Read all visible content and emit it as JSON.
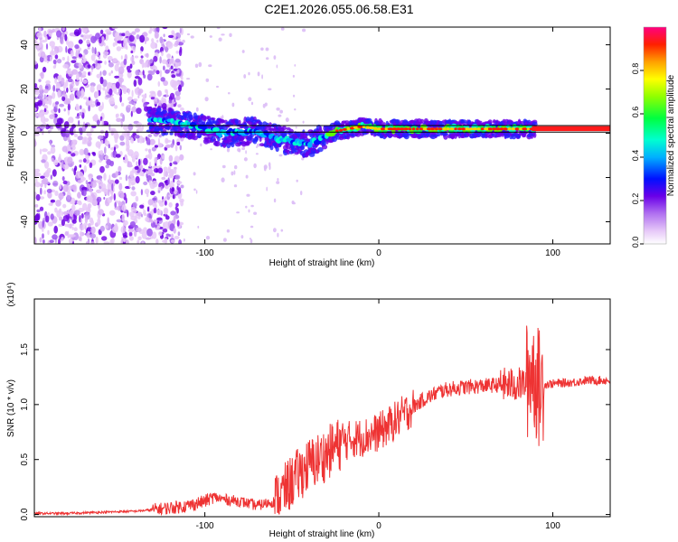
{
  "title": "C2E1.2026.055.06.58.E31",
  "chart_data": [
    {
      "type": "heatmap",
      "name": "spectrogram",
      "xlabel": "Height of straight line (km)",
      "ylabel": "Frequency (Hz)",
      "xlim": [
        -198,
        133
      ],
      "ylim": [
        -50,
        48
      ],
      "xticks": [
        -100,
        0,
        100
      ],
      "xtick_labels": [
        "-100",
        "0",
        "100"
      ],
      "yticks": [
        -40,
        -20,
        0,
        20,
        40
      ],
      "ytick_labels": [
        "-40",
        "-20",
        "0",
        "20",
        "40"
      ],
      "colorbar": {
        "label": "Normalized spectral amplitude",
        "range": [
          0,
          1
        ],
        "ticks": [
          0.0,
          0.2,
          0.4,
          0.6,
          0.8
        ],
        "tick_labels": [
          "0.0",
          "0.2",
          "0.4",
          "0.6",
          "0.8"
        ]
      },
      "track": [
        {
          "x": -130,
          "y": 6
        },
        {
          "x": -110,
          "y": 4
        },
        {
          "x": -90,
          "y": 0
        },
        {
          "x": -70,
          "y": 1
        },
        {
          "x": -55,
          "y": -3
        },
        {
          "x": -40,
          "y": -5
        },
        {
          "x": -25,
          "y": 1
        },
        {
          "x": -10,
          "y": 3
        },
        {
          "x": 0,
          "y": 2
        },
        {
          "x": 30,
          "y": 2
        },
        {
          "x": 60,
          "y": 2
        },
        {
          "x": 90,
          "y": 2
        },
        {
          "x": 133,
          "y": 2
        }
      ],
      "reference_lines": [
        3.5,
        0.5
      ]
    },
    {
      "type": "line",
      "name": "snr",
      "xlabel": "Height of straight line (km)",
      "ylabel": "SNR (10 * v/v)",
      "scale_label": "(x10⁴)",
      "xlim": [
        -198,
        133
      ],
      "ylim": [
        -0.02,
        1.96
      ],
      "xticks": [
        -100,
        0,
        100
      ],
      "xtick_labels": [
        "-100",
        "0",
        "100"
      ],
      "yticks": [
        0.0,
        0.5,
        1.0,
        1.5
      ],
      "ytick_labels": [
        "0.0",
        "0.5",
        "1.0",
        "1.5"
      ],
      "series": [
        {
          "name": "SNR",
          "color": "#ee3333",
          "x": [
            -198,
            -180,
            -160,
            -140,
            -125,
            -110,
            -100,
            -95,
            -90,
            -80,
            -70,
            -60,
            -55,
            -50,
            -45,
            -40,
            -35,
            -30,
            -25,
            -20,
            -15,
            -10,
            -5,
            0,
            5,
            10,
            15,
            20,
            25,
            30,
            35,
            40,
            50,
            60,
            70,
            80,
            85,
            88,
            90,
            92,
            95,
            100,
            110,
            120,
            133
          ],
          "y": [
            0.01,
            0.01,
            0.02,
            0.03,
            0.05,
            0.08,
            0.12,
            0.16,
            0.14,
            0.12,
            0.08,
            0.12,
            0.2,
            0.3,
            0.38,
            0.45,
            0.5,
            0.55,
            0.62,
            0.66,
            0.69,
            0.7,
            0.72,
            0.75,
            0.8,
            0.86,
            0.92,
            0.98,
            1.04,
            1.08,
            1.12,
            1.14,
            1.16,
            1.17,
            1.18,
            1.18,
            1.2,
            1.35,
            1.25,
            1.15,
            1.18,
            1.19,
            1.2,
            1.22,
            1.22
          ]
        }
      ]
    }
  ]
}
